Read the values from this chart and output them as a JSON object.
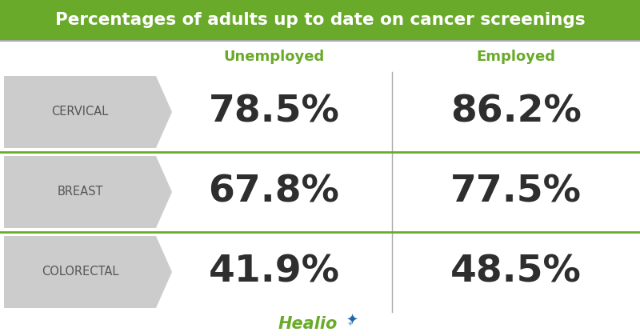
{
  "title": "Percentages of adults up to date on cancer screenings",
  "title_bg_color": "#6aaa2a",
  "title_text_color": "#ffffff",
  "bg_color": "#ffffff",
  "header_unemployed": "Unemployed",
  "header_employed": "Employed",
  "header_color": "#6aaa2a",
  "rows": [
    {
      "label": "CERVICAL",
      "unemployed": "78.5",
      "employed": "86.2"
    },
    {
      "label": "BREAST",
      "unemployed": "67.8",
      "employed": "77.5"
    },
    {
      "label": "COLORECTAL",
      "unemployed": "41.9",
      "employed": "48.5"
    }
  ],
  "arrow_color": "#cccccc",
  "divider_color": "#6aaa2a",
  "label_color": "#555555",
  "value_color": "#2e2e2e",
  "logo_text": "Healio",
  "logo_color": "#6aaa2a",
  "logo_star_color": "#2266aa",
  "border_color": "#aaaaaa",
  "col_divider_color": "#aaaaaa",
  "title_border_color": "#aaaaaa"
}
